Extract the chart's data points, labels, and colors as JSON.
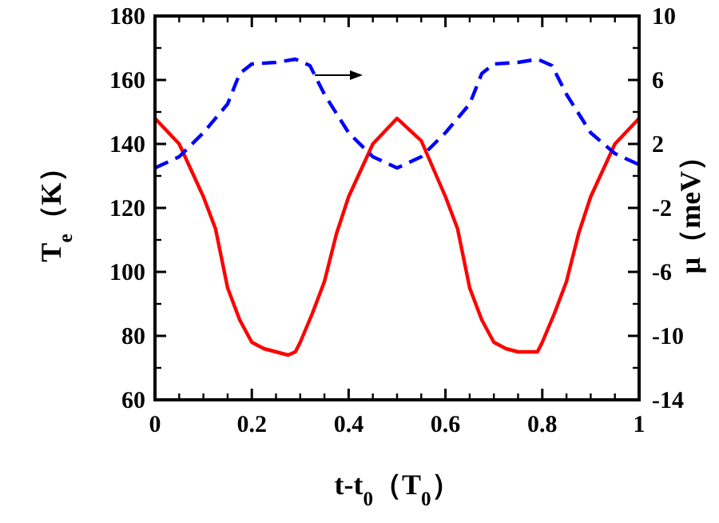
{
  "chart_data": {
    "type": "line",
    "xlabel": "t-t$_{0}$（T$_{0}$）",
    "ylabel": "T$_{e}$（K）",
    "y2label": "μ（meV）",
    "xlim": [
      0,
      1
    ],
    "xticks": [
      0,
      0.2,
      0.4,
      0.6,
      0.8,
      1
    ],
    "ylim": [
      60,
      180
    ],
    "yticks": [
      60,
      80,
      100,
      120,
      140,
      160,
      180
    ],
    "y2lim": [
      -14,
      10
    ],
    "y2ticks": [
      -14,
      -10,
      -6,
      -2,
      2,
      6,
      10
    ],
    "series": [
      {
        "color": "#ff0000",
        "line_style": "solid",
        "x": [
          0,
          0.05,
          0.1,
          0.125,
          0.15,
          0.175,
          0.2,
          0.225,
          0.25,
          0.275,
          0.29,
          0.3,
          0.325,
          0.35,
          0.375,
          0.4,
          0.45,
          0.5,
          0.55,
          0.6,
          0.625,
          0.65,
          0.675,
          0.7,
          0.725,
          0.75,
          0.775,
          0.79,
          0.8,
          0.825,
          0.85,
          0.875,
          0.9,
          0.95,
          1
        ],
        "values": [
          148,
          140,
          123.5,
          113.5,
          95,
          85,
          78,
          76,
          75,
          74,
          75,
          78,
          87,
          97,
          112,
          123.5,
          140,
          148,
          141,
          123.5,
          113.5,
          95,
          85,
          78,
          76,
          75,
          75,
          75,
          78,
          87,
          97,
          112,
          123.5,
          140,
          148
        ]
      },
      {
        "color": "#0000ff",
        "line_style": "dashed",
        "axis": "y2",
        "x": [
          0,
          0.05,
          0.1,
          0.15,
          0.175,
          0.2,
          0.25,
          0.29,
          0.32,
          0.35,
          0.4,
          0.45,
          0.5,
          0.55,
          0.6,
          0.65,
          0.675,
          0.7,
          0.75,
          0.79,
          0.82,
          0.85,
          0.9,
          0.95,
          1
        ],
        "values": [
          0.5,
          1.2,
          2.7,
          4.5,
          6.4,
          7,
          7.1,
          7.3,
          6.9,
          5.1,
          2.7,
          1.2,
          0.5,
          1.2,
          2.7,
          4.5,
          6.4,
          7,
          7.1,
          7.3,
          6.9,
          5.1,
          2.7,
          1.4,
          0.7
        ]
      }
    ]
  }
}
